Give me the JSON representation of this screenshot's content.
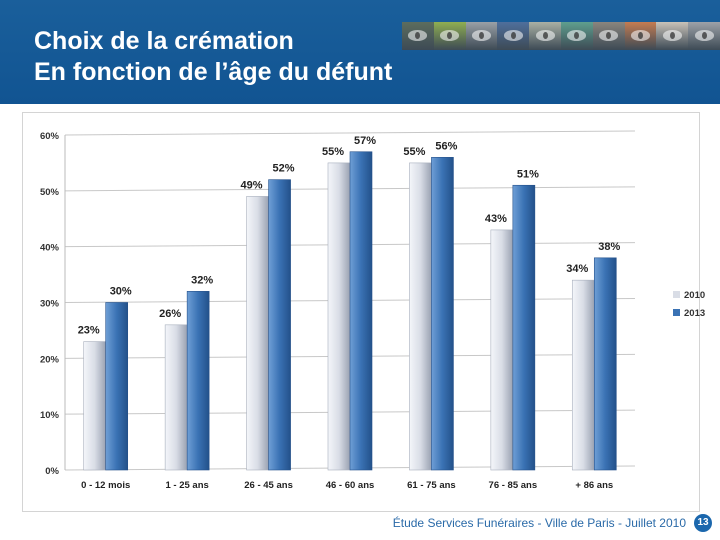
{
  "header": {
    "title_line1": "Choix de la crémation",
    "title_line2": "En fonction de l’âge du défunt",
    "photo_strip_colors": [
      "#5c6d5e",
      "#8fae52",
      "#9aa0a6",
      "#4f6f9c",
      "#a9b0a4",
      "#5f9e8e",
      "#8a857e",
      "#c47c52",
      "#c9c2b8",
      "#9da2a8"
    ]
  },
  "footer": {
    "text": "Étude Services Funéraires - Ville de Paris - Juillet 2010",
    "page_number": "13"
  },
  "chart_data": {
    "type": "bar",
    "categories": [
      "0 - 12 mois",
      "1 - 25 ans",
      "26 - 45 ans",
      "46 - 60 ans",
      "61 - 75 ans",
      "76 - 85 ans",
      "+ 86 ans"
    ],
    "series": [
      {
        "name": "2010",
        "values": [
          23,
          26,
          49,
          55,
          55,
          43,
          34
        ],
        "labels": [
          "23%",
          "26%",
          "49%",
          "55%",
          "55%",
          "43%",
          "34%"
        ],
        "color": "#d9dde6"
      },
      {
        "name": "2013",
        "values": [
          30,
          32,
          52,
          57,
          56,
          51,
          38
        ],
        "labels": [
          "30%",
          "32%",
          "52%",
          "57%",
          "56%",
          "51%",
          "38%"
        ],
        "color": "#3a72b4"
      }
    ],
    "ylim": [
      0,
      60
    ],
    "yticks": [
      0,
      10,
      20,
      30,
      40,
      50,
      60
    ],
    "ytick_labels": [
      "0%",
      "10%",
      "20%",
      "30%",
      "40%",
      "50%",
      "60%"
    ],
    "grid": true,
    "legend_position": "right"
  }
}
